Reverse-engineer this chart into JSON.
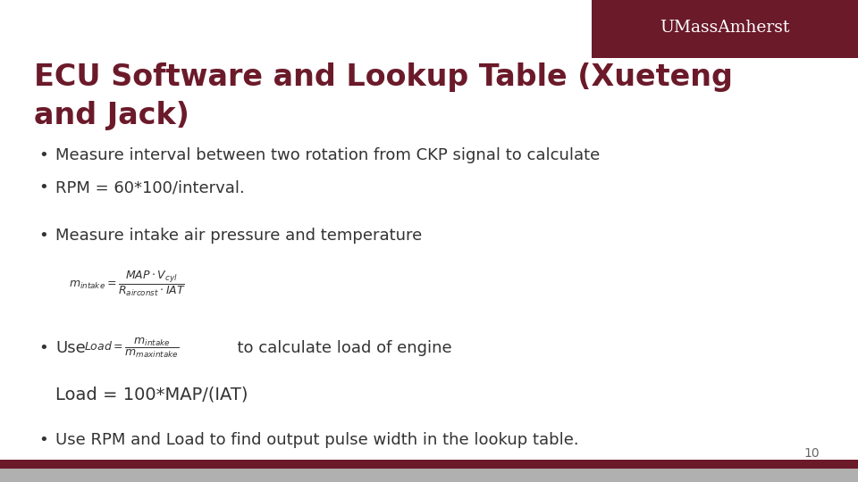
{
  "title_line1": "ECU Software and Lookup Table (Xueteng",
  "title_line2": "and Jack)",
  "title_color": "#6B1A2A",
  "bg_color": "#FFFFFF",
  "header_bg": "#6B1A2A",
  "header_text": "UMassAmherst",
  "header_text_color": "#FFFFFF",
  "footer_gray_color": "#B0B0B0",
  "footer_accent_color": "#6B1A2A",
  "page_number": "10",
  "bullet_color": "#333333",
  "text_color": "#333333",
  "bullet1": "Measure interval between two rotation from CKP signal to calculate",
  "bullet2": "RPM = 60*100/interval.",
  "bullet3": "Measure intake air pressure and temperature",
  "bullet4_pre": "Use",
  "bullet4_post": "  to calculate load of engine",
  "load_eq": "Load = 100*MAP/(IAT)",
  "bullet5": "Use RPM and Load to find output pulse width in the lookup table.",
  "title_fontsize": 24,
  "body_fontsize": 13,
  "formula_fontsize": 9
}
